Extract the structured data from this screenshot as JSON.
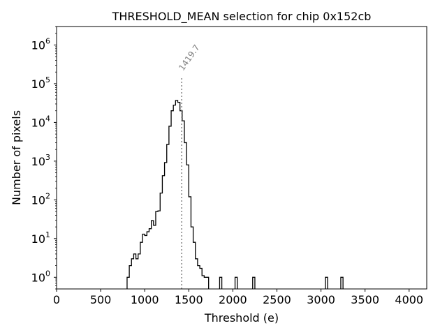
{
  "chart_data": {
    "type": "histogram",
    "title": "THRESHOLD_MEAN selection for chip 0x152cb",
    "xlabel": "Threshold (e)",
    "ylabel": "Number of pixels",
    "xlim": [
      0,
      4200
    ],
    "ylim": [
      0.5,
      3000000
    ],
    "yscale": "log",
    "grid": false,
    "x_ticks": [
      {
        "value": 0,
        "label": "0"
      },
      {
        "value": 500,
        "label": "500"
      },
      {
        "value": 1000,
        "label": "1000"
      },
      {
        "value": 1500,
        "label": "1500"
      },
      {
        "value": 2000,
        "label": "2000"
      },
      {
        "value": 2500,
        "label": "2500"
      },
      {
        "value": 3000,
        "label": "3000"
      },
      {
        "value": 3500,
        "label": "3500"
      },
      {
        "value": 4000,
        "label": "4000"
      }
    ],
    "y_ticks": [
      {
        "value": 1,
        "base": "10",
        "exp": "0"
      },
      {
        "value": 10,
        "base": "10",
        "exp": "1"
      },
      {
        "value": 100,
        "base": "10",
        "exp": "2"
      },
      {
        "value": 1000,
        "base": "10",
        "exp": "3"
      },
      {
        "value": 10000,
        "base": "10",
        "exp": "4"
      },
      {
        "value": 100000,
        "base": "10",
        "exp": "5"
      },
      {
        "value": 1000000,
        "base": "10",
        "exp": "6"
      }
    ],
    "bin_width": 25,
    "bins": [
      {
        "x": 800,
        "y": 1
      },
      {
        "x": 825,
        "y": 2
      },
      {
        "x": 850,
        "y": 3
      },
      {
        "x": 875,
        "y": 4
      },
      {
        "x": 900,
        "y": 3
      },
      {
        "x": 925,
        "y": 4
      },
      {
        "x": 950,
        "y": 8
      },
      {
        "x": 975,
        "y": 13
      },
      {
        "x": 1000,
        "y": 12
      },
      {
        "x": 1025,
        "y": 15
      },
      {
        "x": 1050,
        "y": 18
      },
      {
        "x": 1075,
        "y": 29
      },
      {
        "x": 1100,
        "y": 22
      },
      {
        "x": 1125,
        "y": 50
      },
      {
        "x": 1150,
        "y": 52
      },
      {
        "x": 1175,
        "y": 150
      },
      {
        "x": 1200,
        "y": 420
      },
      {
        "x": 1225,
        "y": 920
      },
      {
        "x": 1250,
        "y": 2700
      },
      {
        "x": 1275,
        "y": 8000
      },
      {
        "x": 1300,
        "y": 20000
      },
      {
        "x": 1325,
        "y": 28000
      },
      {
        "x": 1350,
        "y": 37000
      },
      {
        "x": 1375,
        "y": 33000
      },
      {
        "x": 1400,
        "y": 20000
      },
      {
        "x": 1425,
        "y": 11000
      },
      {
        "x": 1450,
        "y": 3000
      },
      {
        "x": 1475,
        "y": 800
      },
      {
        "x": 1500,
        "y": 120
      },
      {
        "x": 1525,
        "y": 20
      },
      {
        "x": 1550,
        "y": 8
      },
      {
        "x": 1575,
        "y": 3
      },
      {
        "x": 1600,
        "y": 2
      },
      {
        "x": 1625,
        "y": 1.7
      },
      {
        "x": 1650,
        "y": 1.1
      },
      {
        "x": 1675,
        "y": 1
      },
      {
        "x": 1700,
        "y": 1
      },
      {
        "x": 1850,
        "y": 1
      },
      {
        "x": 2025,
        "y": 1
      },
      {
        "x": 2225,
        "y": 1
      },
      {
        "x": 3050,
        "y": 1
      },
      {
        "x": 3225,
        "y": 1
      }
    ],
    "annotations": [
      {
        "type": "vline",
        "x": 1419.7,
        "y_top": 150000,
        "label": "1419.7",
        "color": "#808080",
        "style": "dotted"
      }
    ],
    "colors": {
      "line": "#000000",
      "annotation": "#808080"
    }
  }
}
